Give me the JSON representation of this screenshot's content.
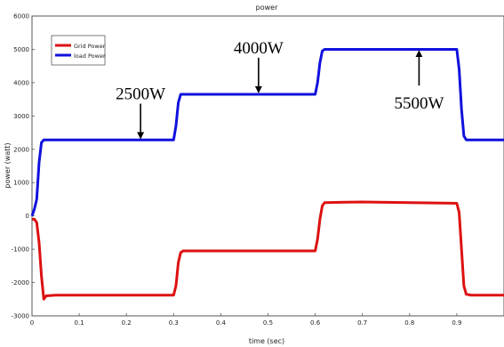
{
  "chart_data": {
    "type": "line",
    "title": "power",
    "xlabel": "time (sec)",
    "ylabel": "power (watt)",
    "xlim": [
      0,
      1
    ],
    "ylim": [
      -3000,
      6000
    ],
    "x_ticks": [
      "0",
      "0.1",
      "0.2",
      "0.3",
      "0.4",
      "0.5",
      "0.6",
      "0.7",
      "0.8",
      "0.9"
    ],
    "y_ticks": [
      "-3000",
      "-2000",
      "-1000",
      "0",
      "1000",
      "2000",
      "3000",
      "4000",
      "5000",
      "6000"
    ],
    "legend_placement": "top-left",
    "grid": false,
    "series": [
      {
        "name": "Grid Power",
        "color": "#dd1111",
        "x": [
          0,
          0.005,
          0.01,
          0.015,
          0.02,
          0.025,
          0.03,
          0.05,
          0.1,
          0.2,
          0.3,
          0.305,
          0.31,
          0.315,
          0.32,
          0.35,
          0.45,
          0.5,
          0.6,
          0.605,
          0.61,
          0.615,
          0.62,
          0.7,
          0.8,
          0.9,
          0.905,
          0.91,
          0.915,
          0.92,
          0.93,
          1.0
        ],
        "values": [
          -100,
          -100,
          -200,
          -800,
          -1800,
          -2500,
          -2400,
          -2380,
          -2380,
          -2380,
          -2380,
          -2100,
          -1400,
          -1100,
          -1050,
          -1050,
          -1050,
          -1050,
          -1050,
          -700,
          -100,
          300,
          400,
          420,
          400,
          380,
          100,
          -1000,
          -2100,
          -2350,
          -2380,
          -2380
        ]
      },
      {
        "name": "load Power",
        "color": "#1111dd",
        "x": [
          0,
          0.005,
          0.01,
          0.015,
          0.02,
          0.025,
          0.03,
          0.1,
          0.2,
          0.3,
          0.305,
          0.31,
          0.315,
          0.32,
          0.4,
          0.5,
          0.6,
          0.605,
          0.61,
          0.615,
          0.62,
          0.7,
          0.8,
          0.9,
          0.905,
          0.91,
          0.915,
          0.92,
          1.0
        ],
        "values": [
          0,
          200,
          500,
          1600,
          2200,
          2280,
          2280,
          2280,
          2280,
          2280,
          2700,
          3400,
          3650,
          3650,
          3650,
          3650,
          3650,
          4000,
          4600,
          4950,
          5000,
          5000,
          5000,
          5000,
          4400,
          3200,
          2400,
          2280,
          2280
        ]
      }
    ],
    "annotations": [
      {
        "text": "2500W",
        "arrow": "down",
        "x": 0.23,
        "arrow_y_end": 2300
      },
      {
        "text": "4000W",
        "arrow": "down",
        "x": 0.48,
        "arrow_y_end": 3680
      },
      {
        "text": "5500W",
        "arrow": "up",
        "x": 0.82,
        "arrow_y_end": 4980
      }
    ]
  }
}
